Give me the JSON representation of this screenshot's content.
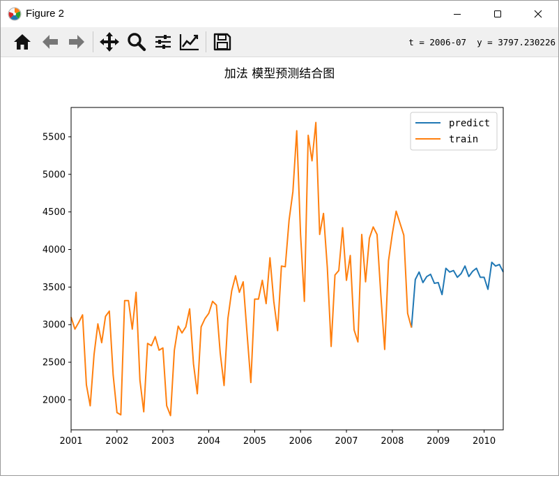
{
  "window": {
    "title": "Figure 2",
    "controls": [
      "minimize",
      "maximize",
      "close"
    ]
  },
  "toolbar": {
    "buttons": [
      {
        "name": "home",
        "icon": "home-icon"
      },
      {
        "name": "back",
        "icon": "arrow-left-icon"
      },
      {
        "name": "forward",
        "icon": "arrow-right-icon"
      },
      {
        "name": "pan",
        "icon": "move-icon"
      },
      {
        "name": "zoom",
        "icon": "magnifier-icon"
      },
      {
        "name": "subplots",
        "icon": "sliders-icon"
      },
      {
        "name": "edit-axis",
        "icon": "line-chart-icon"
      },
      {
        "name": "save",
        "icon": "floppy-disk-icon"
      }
    ],
    "coordinates": "t = 2006-07  y = 3797.230226"
  },
  "chart_data": {
    "type": "line",
    "title": "加法 模型预测结合图",
    "xlabel": "",
    "ylabel": "",
    "xlim": [
      "2001-01",
      "2010-06"
    ],
    "ylim": [
      1600,
      5890
    ],
    "xticks": [
      "2001",
      "2002",
      "2003",
      "2004",
      "2005",
      "2006",
      "2007",
      "2008",
      "2009",
      "2010"
    ],
    "yticks": [
      2000,
      2500,
      3000,
      3500,
      4000,
      4500,
      5000,
      5500
    ],
    "grid": false,
    "legend": "top-right",
    "colors": {
      "predict": "#1f77b4",
      "train": "#ff7f0e"
    },
    "series": [
      {
        "name": "predict",
        "start": "2008-06",
        "values": [
          2960,
          3600,
          3700,
          3560,
          3640,
          3670,
          3550,
          3560,
          3400,
          3750,
          3700,
          3720,
          3630,
          3680,
          3780,
          3640,
          3710,
          3750,
          3630,
          3630,
          3470,
          3830,
          3780,
          3800,
          3700
        ]
      },
      {
        "name": "train",
        "start": "2001-01",
        "values": [
          3100,
          2940,
          3030,
          3130,
          2200,
          1920,
          2600,
          3010,
          2760,
          3110,
          3180,
          2330,
          1830,
          1800,
          3320,
          3320,
          2940,
          3430,
          2260,
          1840,
          2750,
          2720,
          2840,
          2660,
          2690,
          1920,
          1790,
          2660,
          2980,
          2890,
          2970,
          3210,
          2480,
          2080,
          2970,
          3080,
          3150,
          3310,
          3260,
          2620,
          2190,
          3080,
          3450,
          3650,
          3430,
          3570,
          2890,
          2230,
          3340,
          3340,
          3590,
          3280,
          3890,
          3310,
          2920,
          3780,
          3770,
          4390,
          4770,
          5580,
          4200,
          3310,
          5520,
          5180,
          5690,
          4200,
          4480,
          3760,
          2710,
          3660,
          3720,
          4290,
          3590,
          3920,
          2930,
          2770,
          4200,
          3570,
          4150,
          4300,
          4200,
          3390,
          2670,
          3850,
          4210,
          4510,
          4350,
          4190,
          3150,
          2960
        ]
      }
    ]
  }
}
